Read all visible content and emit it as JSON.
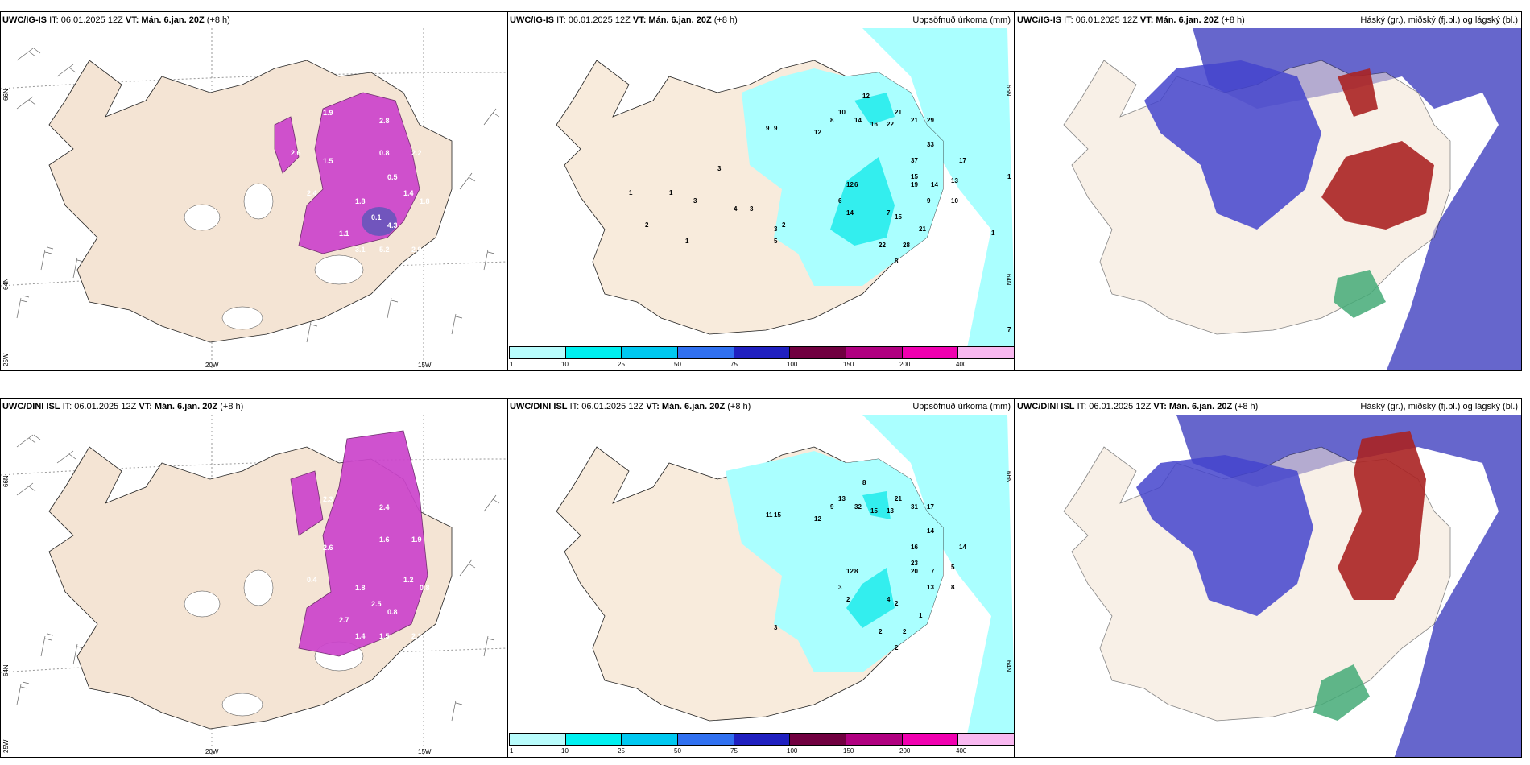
{
  "rows": [
    {
      "model": "UWC/IG-IS",
      "it_label": "IT: 06.01.2025 12Z",
      "vt_label": "VT: Mán. 6.jan. 20Z",
      "lead": "(+8 h)",
      "wind_values": [
        "1.9",
        "2.8",
        "2.2",
        "0.8",
        "1.5",
        "2.4",
        "1.8",
        "4.3",
        "0.1",
        "1.1",
        "5.2",
        "2.9",
        "3.1",
        "1.8",
        "1.4",
        "0.5",
        "2.6"
      ],
      "precip_values": [
        "12",
        "21",
        "21",
        "29",
        "22",
        "14",
        "16",
        "8",
        "10",
        "9",
        "9",
        "12",
        "33",
        "37",
        "17",
        "19",
        "15",
        "14",
        "13",
        "10",
        "6",
        "9",
        "12",
        "6",
        "14",
        "7",
        "15",
        "21",
        "28",
        "22",
        "8",
        "5",
        "4",
        "3",
        "1",
        "2",
        "1",
        "3",
        "1",
        "3",
        "2",
        "3",
        "7",
        "1",
        "1"
      ]
    },
    {
      "model": "UWC/DINI ISL",
      "it_label": "IT: 06.01.2025 12Z",
      "vt_label": "VT: Mán. 6.jan. 20Z",
      "lead": "(+8 h)",
      "wind_values": [
        "2.3",
        "2.4",
        "1.9",
        "1.6",
        "2.6",
        "0.4",
        "1.8",
        "0.8",
        "2.5",
        "2.7",
        "1.5",
        "2.1",
        "1.4",
        "0.8",
        "1.2"
      ],
      "precip_values": [
        "8",
        "21",
        "31",
        "17",
        "13",
        "32",
        "15",
        "9",
        "13",
        "11",
        "15",
        "12",
        "14",
        "16",
        "14",
        "20",
        "23",
        "7",
        "5",
        "8",
        "8",
        "13",
        "12",
        "3",
        "2",
        "4",
        "2",
        "1",
        "2",
        "2",
        "2",
        "3"
      ]
    }
  ],
  "precip_title": "Uppsöfnuð úrkoma (mm)",
  "cloud_title": "Háský (gr.), miðský (fj.bl.) og lágský (bl.)",
  "axis_labels": {
    "lat66": "66N",
    "lat64": "64N",
    "lon25": "25W",
    "lon20": "20W",
    "lon15": "15W",
    "right_top": "66N",
    "right_bottom": "64N"
  },
  "colorbar": {
    "ticks": [
      "1",
      "10",
      "25",
      "50",
      "75",
      "100",
      "150",
      "200",
      "400"
    ],
    "colors": [
      "#b8fcfc",
      "#00f0f0",
      "#00c8f0",
      "#3070f0",
      "#2020c0",
      "#700040",
      "#b00080",
      "#f000b0",
      "#f8b8f0"
    ]
  },
  "colors": {
    "land": "#f4e4d4",
    "precip": "#aaffff",
    "precip2": "#33eeee",
    "wind_purple": "#cc44cc",
    "cloud_high": "#6666cc",
    "cloud_mid": "#3333cc",
    "cloud_low": "#aa2222",
    "cloud_green": "#44aa77"
  }
}
